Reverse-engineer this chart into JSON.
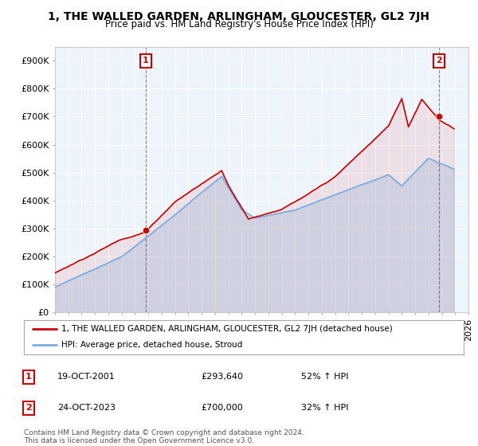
{
  "title": "1, THE WALLED GARDEN, ARLINGHAM, GLOUCESTER, GL2 7JH",
  "subtitle": "Price paid vs. HM Land Registry's House Price Index (HPI)",
  "legend_property": "1, THE WALLED GARDEN, ARLINGHAM, GLOUCESTER, GL2 7JH (detached house)",
  "legend_hpi": "HPI: Average price, detached house, Stroud",
  "sale1_label": "1",
  "sale1_date": "19-OCT-2001",
  "sale1_price": "£293,640",
  "sale1_hpi": "52% ↑ HPI",
  "sale2_label": "2",
  "sale2_date": "24-OCT-2023",
  "sale2_price": "£700,000",
  "sale2_hpi": "32% ↑ HPI",
  "footnote1": "Contains HM Land Registry data © Crown copyright and database right 2024.",
  "footnote2": "This data is licensed under the Open Government Licence v3.0.",
  "ylim": [
    0,
    950000
  ],
  "yticks": [
    0,
    100000,
    200000,
    300000,
    400000,
    500000,
    600000,
    700000,
    800000,
    900000
  ],
  "ytick_labels": [
    "£0",
    "£100K",
    "£200K",
    "£300K",
    "£400K",
    "£500K",
    "£600K",
    "£700K",
    "£800K",
    "£900K"
  ],
  "xlim_start": 1995.0,
  "xlim_end": 2026.0,
  "property_color": "#cc0000",
  "hpi_color": "#7aade0",
  "sale1_year": 2001.8,
  "sale1_value": 293640,
  "sale2_year": 2023.8,
  "sale2_value": 700000,
  "bg_color": "#ffffff",
  "plot_bg_color": "#eef4fb",
  "grid_color": "#ffffff"
}
